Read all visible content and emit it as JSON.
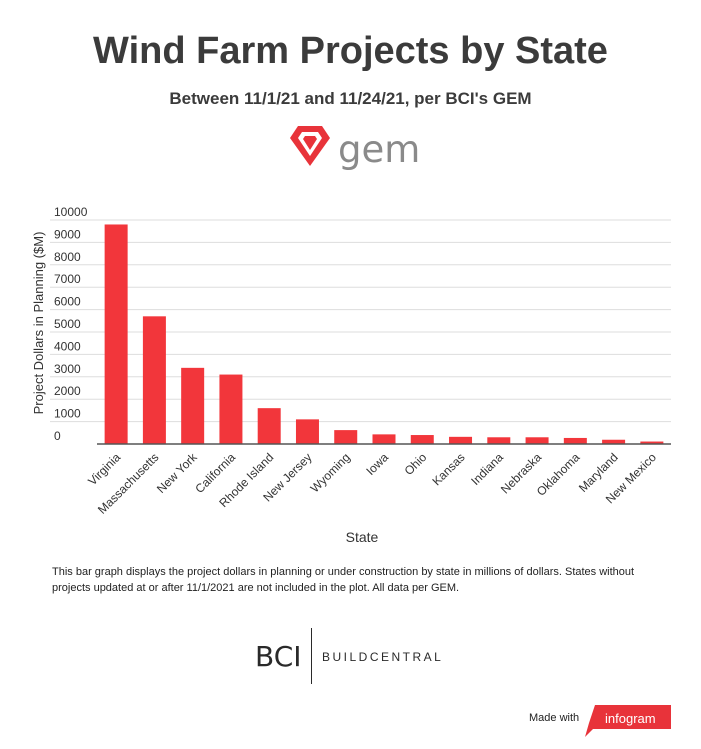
{
  "header": {
    "title": "Wind Farm Projects by State",
    "subtitle": "Between 11/1/21 and 11/24/21, per BCI's GEM",
    "logo_text": "gem"
  },
  "colors": {
    "bar": "#f2363b",
    "logo_red": "#e8333a",
    "grid": "#dddddd",
    "axis": "#555555"
  },
  "chart_data": {
    "type": "bar",
    "categories": [
      "Virginia",
      "Massachusetts",
      "New York",
      "California",
      "Rhode Island",
      "New Jersey",
      "Wyoming",
      "Iowa",
      "Ohio",
      "Kansas",
      "Indiana",
      "Nebraska",
      "Oklahoma",
      "Maryland",
      "New Mexico"
    ],
    "values": [
      9800,
      5700,
      3400,
      3100,
      1600,
      1100,
      620,
      430,
      400,
      320,
      300,
      300,
      270,
      190,
      110
    ],
    "xlabel": "State",
    "ylabel": "Project Dollars in Planning ($M)",
    "ylim": [
      0,
      10000
    ],
    "yticks": [
      0,
      1000,
      2000,
      3000,
      4000,
      5000,
      6000,
      7000,
      8000,
      9000,
      10000
    ],
    "grid": true
  },
  "caption": "This bar graph displays the project dollars in planning or under construction by state in millions of dollars. States without projects updated at or after 11/1/2021 are not included in the plot. All data per GEM.",
  "footer": {
    "bci": "BCI",
    "bci_sub": "BUILDCENTRAL",
    "made_with": "Made with",
    "infogram": "infogram"
  }
}
